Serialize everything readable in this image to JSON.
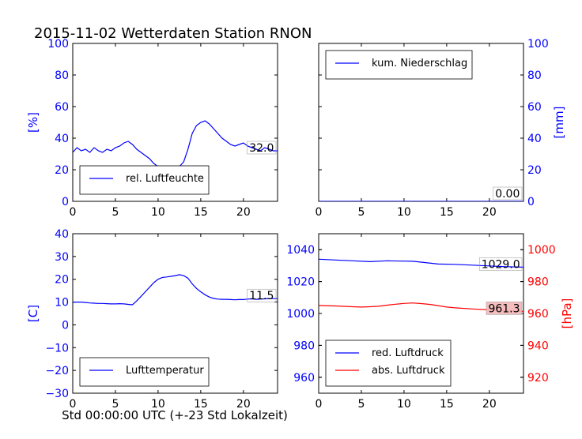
{
  "figure": {
    "title": "2015-11-02 Wetterdaten Station RNON",
    "xlabel_bottom": "Std 00:00:00 UTC (+-23 Std Lokalzeit)"
  },
  "colors": {
    "blue": "#0000ff",
    "red": "#ff0000",
    "axis": "#000000",
    "badge_red": "#f4b8b8"
  },
  "chart_data": [
    {
      "id": "humidity",
      "type": "line",
      "xlim": [
        0,
        24
      ],
      "xticks": [
        0,
        5,
        10,
        15,
        20
      ],
      "ylim": [
        0,
        100
      ],
      "yticks": [
        0,
        20,
        40,
        60,
        80,
        100
      ],
      "ylabel": "[%]",
      "yaxis_side": "left",
      "tick_color": "#0000ff",
      "legend": {
        "placement": "lower-left",
        "entries": [
          {
            "name": "rel. Luftfeuchte",
            "color": "#0000ff"
          }
        ]
      },
      "last_value_label": "32.0",
      "series": [
        {
          "name": "rel. Luftfeuchte",
          "color": "#0000ff",
          "x": [
            0,
            0.5,
            1,
            1.5,
            2,
            2.5,
            3,
            3.5,
            4,
            4.5,
            5,
            5.5,
            6,
            6.5,
            7,
            7.5,
            8,
            8.5,
            9,
            9.5,
            10,
            10.5,
            11,
            11.5,
            12,
            12.5,
            13,
            13.5,
            14,
            14.5,
            15,
            15.5,
            16,
            16.5,
            17,
            17.5,
            18,
            18.5,
            19,
            19.5,
            20,
            20.5,
            21,
            21.5,
            22,
            22.5,
            23,
            23.5,
            24
          ],
          "values": [
            31,
            34,
            32,
            33,
            31,
            34,
            32,
            31,
            33,
            32,
            34,
            35,
            37,
            38,
            36,
            33,
            31,
            29,
            27,
            24,
            22,
            20,
            20,
            21,
            22,
            22,
            25,
            33,
            43,
            48,
            50,
            51,
            49,
            46,
            43,
            40,
            38,
            36,
            35,
            36,
            37,
            35,
            34,
            33,
            32,
            34,
            33,
            32,
            32
          ]
        }
      ]
    },
    {
      "id": "precipitation",
      "type": "line",
      "xlim": [
        0,
        24
      ],
      "xticks": [
        0,
        5,
        10,
        15,
        20
      ],
      "ylim": [
        0,
        100
      ],
      "yticks": [
        0,
        20,
        40,
        60,
        80,
        100
      ],
      "ylabel": "[mm]",
      "yaxis_side": "right",
      "tick_color": "#0000ff",
      "legend": {
        "placement": "upper-left",
        "entries": [
          {
            "name": "kum. Niederschlag",
            "color": "#0000ff"
          }
        ]
      },
      "last_value_label": "0.00",
      "series": [
        {
          "name": "kum. Niederschlag",
          "color": "#0000ff",
          "x": [
            0,
            24
          ],
          "values": [
            0,
            0
          ]
        }
      ]
    },
    {
      "id": "temperature",
      "type": "line",
      "xlim": [
        0,
        24
      ],
      "xticks": [
        0,
        5,
        10,
        15,
        20
      ],
      "ylim": [
        -30,
        40
      ],
      "yticks": [
        -30,
        -20,
        -10,
        0,
        10,
        20,
        30,
        40
      ],
      "ylabel": "[C]",
      "yaxis_side": "left",
      "tick_color": "#0000ff",
      "legend": {
        "placement": "lower-left",
        "entries": [
          {
            "name": "Lufttemperatur",
            "color": "#0000ff"
          }
        ]
      },
      "last_value_label": "11.5",
      "series": [
        {
          "name": "Lufttemperatur",
          "color": "#0000ff",
          "x": [
            0,
            0.5,
            1,
            1.5,
            2,
            2.5,
            3,
            3.5,
            4,
            4.5,
            5,
            5.5,
            6,
            6.5,
            7,
            7.5,
            8,
            8.5,
            9,
            9.5,
            10,
            10.5,
            11,
            11.5,
            12,
            12.5,
            13,
            13.5,
            14,
            14.5,
            15,
            15.5,
            16,
            16.5,
            17,
            17.5,
            18,
            18.5,
            19,
            19.5,
            20,
            20.5,
            21,
            21.5,
            22,
            22.5,
            23,
            23.5,
            24
          ],
          "values": [
            10,
            10,
            10,
            9.8,
            9.6,
            9.5,
            9.4,
            9.4,
            9.3,
            9.2,
            9.2,
            9.3,
            9.2,
            9.0,
            8.8,
            10.5,
            12.5,
            14.5,
            16.5,
            18.5,
            20,
            20.8,
            21,
            21.3,
            21.6,
            22,
            21.6,
            20.5,
            18,
            16,
            14.5,
            13.2,
            12.2,
            11.6,
            11.3,
            11.2,
            11.2,
            11.1,
            11.0,
            11.1,
            11.1,
            11.3,
            11.4,
            11.2,
            11.3,
            11.4,
            11.5,
            11.5,
            11.5
          ]
        }
      ]
    },
    {
      "id": "pressure",
      "type": "line",
      "xlim": [
        0,
        24
      ],
      "xticks": [
        0,
        5,
        10,
        15,
        20
      ],
      "ylim_left": [
        950,
        1050
      ],
      "yticks_left": [
        960,
        980,
        1000,
        1020,
        1040
      ],
      "ylim_right": [
        910,
        1010
      ],
      "yticks_right": [
        920,
        940,
        960,
        980,
        1000
      ],
      "ylabel_right": "[hPa]",
      "tick_color_left": "#0000ff",
      "tick_color_right": "#ff0000",
      "legend": {
        "placement": "lower-left",
        "entries": [
          {
            "name": "red. Luftdruck",
            "color": "#0000ff"
          },
          {
            "name": "abs. Luftdruck",
            "color": "#ff0000"
          }
        ]
      },
      "last_value_labels": [
        "1029.0",
        "961.3"
      ],
      "series": [
        {
          "name": "red. Luftdruck",
          "color": "#0000ff",
          "axis": "left",
          "x": [
            0,
            2,
            4,
            6,
            8,
            10,
            11,
            12,
            14,
            16,
            18,
            20,
            22,
            24
          ],
          "values": [
            1034,
            1033.5,
            1033,
            1032.5,
            1033,
            1032.8,
            1032.7,
            1032.2,
            1031,
            1030.8,
            1030.3,
            1029.8,
            1029.3,
            1029
          ]
        },
        {
          "name": "abs. Luftdruck",
          "color": "#ff0000",
          "axis": "right",
          "x": [
            0,
            2,
            4,
            5,
            6,
            7,
            8,
            9,
            10,
            11,
            12,
            13,
            14,
            15,
            16,
            18,
            20,
            22,
            24
          ],
          "values": [
            965,
            964.7,
            964.2,
            964,
            964.2,
            964.5,
            965.2,
            965.8,
            966.3,
            966.6,
            966.2,
            965.7,
            964.9,
            964,
            963.5,
            962.8,
            962.3,
            961.8,
            961.3
          ]
        }
      ]
    }
  ]
}
